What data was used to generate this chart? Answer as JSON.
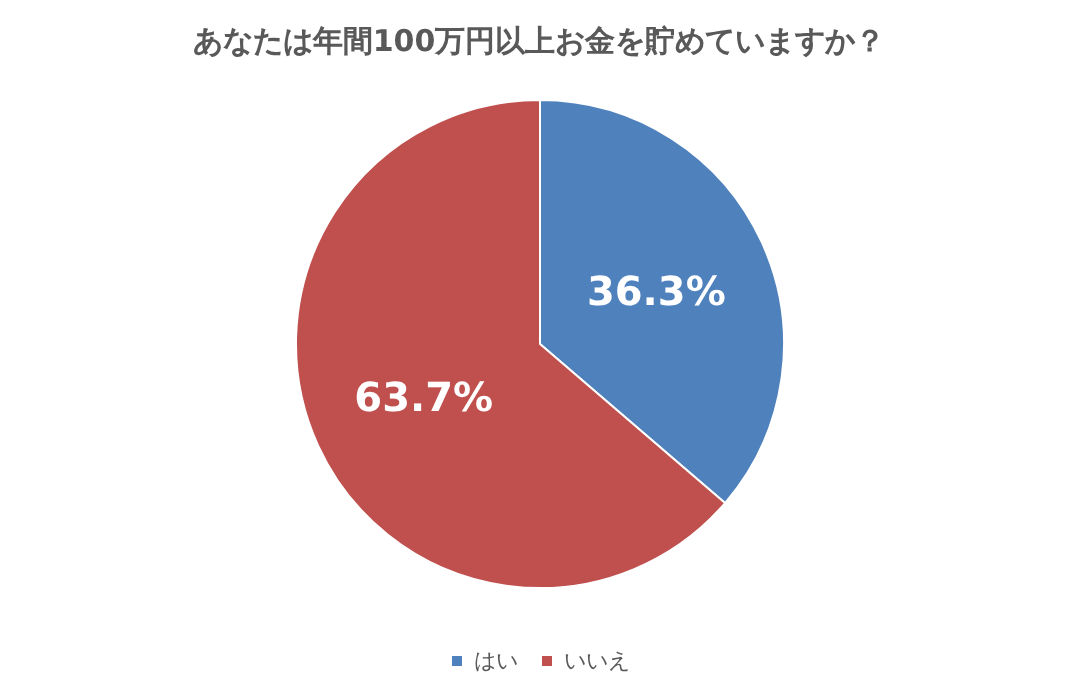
{
  "chart_data": {
    "type": "pie",
    "title": "あなたは年間100万円以上お金を貯めていますか？",
    "categories": [
      "はい",
      "いいえ"
    ],
    "values": [
      36.3,
      63.7
    ],
    "colors": [
      "#4f81bd",
      "#c0504d"
    ],
    "value_labels": [
      "36.3%",
      "63.7%"
    ],
    "legend": "bottom"
  }
}
